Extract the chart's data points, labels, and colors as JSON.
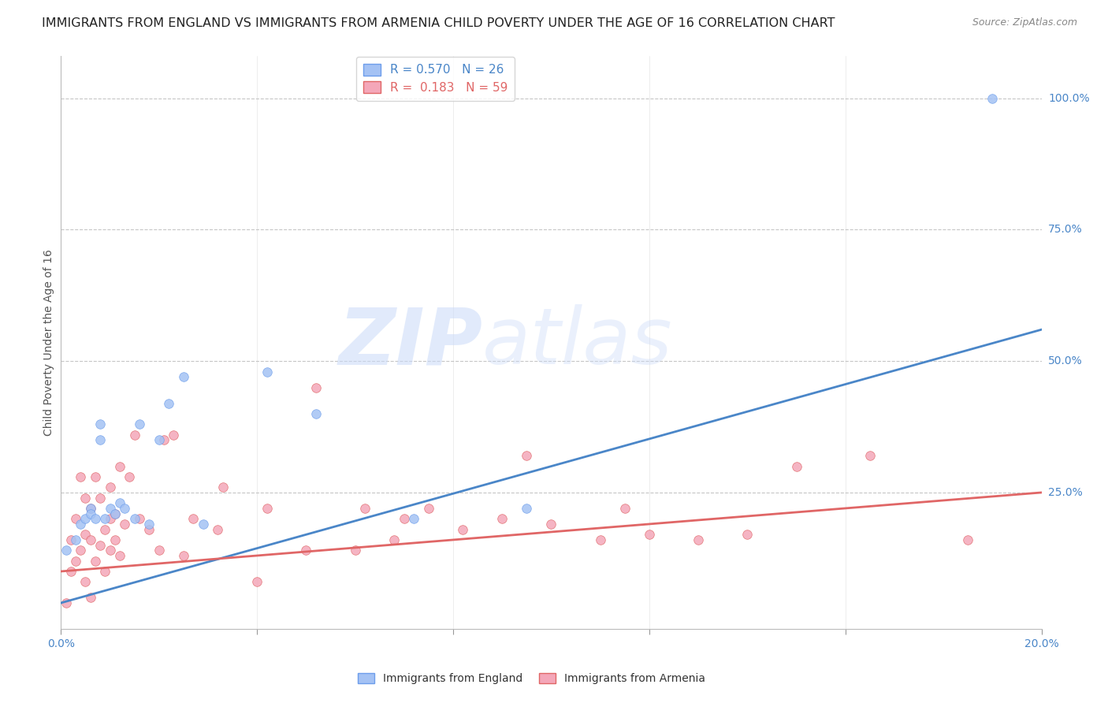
{
  "title": "IMMIGRANTS FROM ENGLAND VS IMMIGRANTS FROM ARMENIA CHILD POVERTY UNDER THE AGE OF 16 CORRELATION CHART",
  "source": "Source: ZipAtlas.com",
  "ylabel": "Child Poverty Under the Age of 16",
  "xlim": [
    0.0,
    0.2
  ],
  "ylim": [
    -0.01,
    1.08
  ],
  "xticks": [
    0.0,
    0.04,
    0.08,
    0.12,
    0.16,
    0.2
  ],
  "yticks_right": [
    0.25,
    0.5,
    0.75,
    1.0
  ],
  "ytick_labels_right": [
    "25.0%",
    "50.0%",
    "75.0%",
    "100.0%"
  ],
  "england_R": 0.57,
  "england_N": 26,
  "armenia_R": 0.183,
  "armenia_N": 59,
  "england_color": "#a4c2f4",
  "armenia_color": "#f4a7b9",
  "england_edge_color": "#6d9eeb",
  "armenia_edge_color": "#e06666",
  "england_line_color": "#4a86c8",
  "armenia_line_color": "#e06666",
  "watermark_zip": "ZIP",
  "watermark_atlas": "atlas",
  "england_scatter_x": [
    0.001,
    0.003,
    0.004,
    0.005,
    0.006,
    0.006,
    0.007,
    0.008,
    0.008,
    0.009,
    0.01,
    0.011,
    0.012,
    0.013,
    0.015,
    0.016,
    0.018,
    0.02,
    0.022,
    0.025,
    0.029,
    0.042,
    0.052,
    0.072,
    0.095,
    0.19
  ],
  "england_scatter_y": [
    0.14,
    0.16,
    0.19,
    0.2,
    0.22,
    0.21,
    0.2,
    0.35,
    0.38,
    0.2,
    0.22,
    0.21,
    0.23,
    0.22,
    0.2,
    0.38,
    0.19,
    0.35,
    0.42,
    0.47,
    0.19,
    0.48,
    0.4,
    0.2,
    0.22,
    1.0
  ],
  "armenia_scatter_x": [
    0.001,
    0.002,
    0.002,
    0.003,
    0.003,
    0.004,
    0.004,
    0.005,
    0.005,
    0.005,
    0.006,
    0.006,
    0.006,
    0.007,
    0.007,
    0.008,
    0.008,
    0.009,
    0.009,
    0.01,
    0.01,
    0.01,
    0.011,
    0.011,
    0.012,
    0.012,
    0.013,
    0.014,
    0.015,
    0.016,
    0.018,
    0.02,
    0.021,
    0.023,
    0.025,
    0.027,
    0.032,
    0.033,
    0.04,
    0.042,
    0.05,
    0.052,
    0.06,
    0.062,
    0.068,
    0.07,
    0.075,
    0.082,
    0.09,
    0.095,
    0.1,
    0.11,
    0.115,
    0.12,
    0.13,
    0.14,
    0.15,
    0.165,
    0.185
  ],
  "armenia_scatter_y": [
    0.04,
    0.1,
    0.16,
    0.12,
    0.2,
    0.14,
    0.28,
    0.08,
    0.17,
    0.24,
    0.05,
    0.16,
    0.22,
    0.12,
    0.28,
    0.15,
    0.24,
    0.1,
    0.18,
    0.14,
    0.2,
    0.26,
    0.16,
    0.21,
    0.13,
    0.3,
    0.19,
    0.28,
    0.36,
    0.2,
    0.18,
    0.14,
    0.35,
    0.36,
    0.13,
    0.2,
    0.18,
    0.26,
    0.08,
    0.22,
    0.14,
    0.45,
    0.14,
    0.22,
    0.16,
    0.2,
    0.22,
    0.18,
    0.2,
    0.32,
    0.19,
    0.16,
    0.22,
    0.17,
    0.16,
    0.17,
    0.3,
    0.32,
    0.16
  ],
  "england_line_x": [
    0.0,
    0.2
  ],
  "england_line_y": [
    0.04,
    0.56
  ],
  "armenia_line_x": [
    0.0,
    0.2
  ],
  "armenia_line_y": [
    0.1,
    0.25
  ],
  "bg_color": "#ffffff",
  "grid_color": "#c0c0c0",
  "title_fontsize": 11.5,
  "axis_label_fontsize": 10,
  "tick_fontsize": 10,
  "legend_fontsize": 11,
  "marker_size": 70
}
